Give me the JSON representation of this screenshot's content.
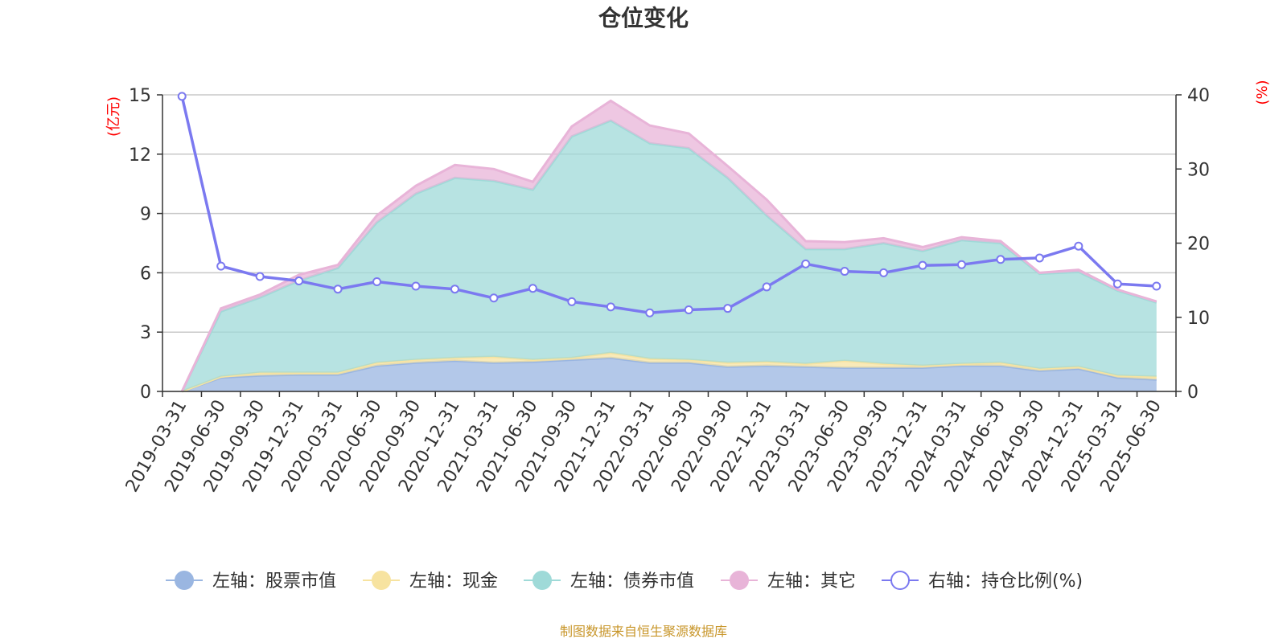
{
  "chart_data": {
    "type": "area",
    "title": "仓位变化",
    "source": "制图数据来自恒生聚源数据库",
    "left_axis": {
      "unit": "(亿元)",
      "ylim": [
        0,
        15
      ],
      "ticks": [
        "0",
        "3",
        "6",
        "9",
        "12",
        "15"
      ]
    },
    "right_axis": {
      "unit": "(%)",
      "ylim": [
        0,
        40
      ],
      "ticks": [
        "0",
        "10",
        "20",
        "30",
        "40"
      ]
    },
    "categories": [
      "2019-03-31",
      "2019-06-30",
      "2019-09-30",
      "2019-12-31",
      "2020-03-31",
      "2020-06-30",
      "2020-09-30",
      "2020-12-31",
      "2021-03-31",
      "2021-06-30",
      "2021-09-30",
      "2021-12-31",
      "2022-03-31",
      "2022-06-30",
      "2022-09-30",
      "2022-12-31",
      "2023-03-31",
      "2023-06-30",
      "2023-09-30",
      "2023-12-31",
      "2024-03-31",
      "2024-06-30",
      "2024-09-30",
      "2024-12-31",
      "2025-03-31",
      "2025-06-30"
    ],
    "stacked_series": [
      {
        "name": "左轴：股票市值",
        "color": "#9ab6e1",
        "values": [
          0,
          0.7,
          0.8,
          0.85,
          0.85,
          1.3,
          1.45,
          1.55,
          1.45,
          1.5,
          1.6,
          1.7,
          1.45,
          1.45,
          1.25,
          1.3,
          1.25,
          1.2,
          1.2,
          1.2,
          1.3,
          1.3,
          1.05,
          1.15,
          0.7,
          0.6
        ]
      },
      {
        "name": "左轴：现金",
        "color": "#f7e3a0",
        "values": [
          0,
          0.05,
          0.15,
          0.1,
          0.1,
          0.15,
          0.15,
          0.15,
          0.3,
          0.1,
          0.1,
          0.25,
          0.2,
          0.15,
          0.2,
          0.2,
          0.15,
          0.35,
          0.2,
          0.1,
          0.1,
          0.15,
          0.1,
          0.1,
          0.1,
          0.15
        ]
      },
      {
        "name": "左轴：债券市值",
        "color": "#9fdad8",
        "values": [
          0,
          3.3,
          3.8,
          4.65,
          5.3,
          7.1,
          8.4,
          9.1,
          8.9,
          8.6,
          11.2,
          11.75,
          10.9,
          10.7,
          9.35,
          7.4,
          5.8,
          5.65,
          6.1,
          5.8,
          6.25,
          6.05,
          4.8,
          4.8,
          4.3,
          3.75
        ]
      },
      {
        "name": "左轴：其它",
        "color": "#e8b4d8",
        "values": [
          0,
          0.15,
          0.15,
          0.3,
          0.15,
          0.35,
          0.4,
          0.65,
          0.6,
          0.4,
          0.5,
          1.0,
          0.9,
          0.75,
          0.6,
          0.8,
          0.4,
          0.35,
          0.25,
          0.2,
          0.15,
          0.1,
          0.05,
          0.1,
          0.05,
          0.05
        ]
      }
    ],
    "line_series": {
      "name": "右轴：持仓比例(%)",
      "color": "#7b79f0",
      "axis": "right",
      "values": [
        39.8,
        16.9,
        15.5,
        14.9,
        13.8,
        14.8,
        14.2,
        13.8,
        12.6,
        13.9,
        12.1,
        11.4,
        10.6,
        11.0,
        11.2,
        14.1,
        17.2,
        16.2,
        16.0,
        17.0,
        17.1,
        17.8,
        18.0,
        19.6,
        14.5,
        14.2
      ]
    },
    "grid": true,
    "legend_position": "bottom-center"
  }
}
